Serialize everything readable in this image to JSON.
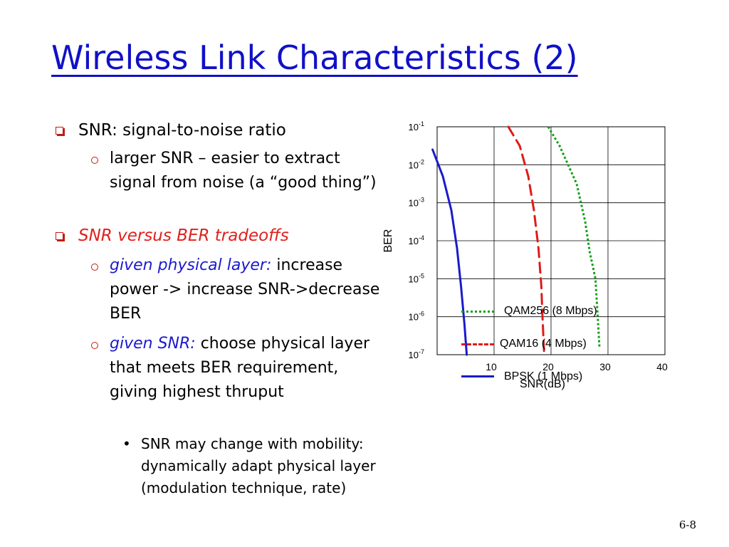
{
  "slide": {
    "title": "Wireless Link Characteristics (2)",
    "page_number": "6-8"
  },
  "bullets": [
    {
      "level": 1,
      "marker": "checkbox-icon",
      "parts": [
        {
          "text": "SNR: signal-to-noise ratio",
          "style": "normal"
        }
      ]
    },
    {
      "level": 2,
      "marker": "circle-icon",
      "parts": [
        {
          "text": "larger SNR – easier to extract signal from noise (a “good thing”)",
          "style": "normal"
        }
      ]
    },
    {
      "level": 1,
      "marker": "checkbox-icon",
      "parts": [
        {
          "text": "SNR versus BER tradeoffs",
          "style": "red-italic"
        }
      ]
    },
    {
      "level": 2,
      "marker": "circle-icon",
      "parts": [
        {
          "text": "given physical layer:",
          "style": "blue-italic"
        },
        {
          "text": " increase power -> increase SNR->decrease BER",
          "style": "normal"
        }
      ]
    },
    {
      "level": 2,
      "marker": "circle-icon",
      "parts": [
        {
          "text": "given SNR:",
          "style": "blue-italic"
        },
        {
          "text": " choose physical layer that meets BER requirement, giving highest thruput",
          "style": "normal"
        }
      ]
    },
    {
      "level": 3,
      "marker": "dot-icon",
      "parts": [
        {
          "text": "SNR may change with mobility: dynamically adapt physical layer (modulation technique, rate)",
          "style": "normal"
        }
      ]
    }
  ],
  "chart_data": {
    "type": "line",
    "title": "",
    "xlabel": "SNR(dB)",
    "ylabel": "BER",
    "xlim": [
      0,
      40
    ],
    "ylim_log10": [
      -7,
      -1
    ],
    "y_scale": "log",
    "x_ticks": [
      "10",
      "20",
      "30",
      "40"
    ],
    "y_ticks": [
      {
        "base": "10",
        "exp": "-1"
      },
      {
        "base": "10",
        "exp": "-2"
      },
      {
        "base": "10",
        "exp": "-3"
      },
      {
        "base": "10",
        "exp": "-4"
      },
      {
        "base": "10",
        "exp": "-5"
      },
      {
        "base": "10",
        "exp": "-6"
      },
      {
        "base": "10",
        "exp": "-7"
      }
    ],
    "grid": true,
    "legend_position": "bottom",
    "series": [
      {
        "name": "QAM256 (8 Mbps)",
        "color": "#10a018",
        "dash": "dotted",
        "points": [
          [
            19.5,
            -1.0
          ],
          [
            21.5,
            -1.5
          ],
          [
            24.5,
            -2.5
          ],
          [
            26.0,
            -3.5
          ],
          [
            26.8,
            -4.3
          ],
          [
            27.8,
            -5.0
          ],
          [
            28.2,
            -6.0
          ],
          [
            28.5,
            -6.8
          ]
        ]
      },
      {
        "name": "QAM16 (4 Mbps)",
        "color": "#e01a1a",
        "dash": "dashed",
        "points": [
          [
            12.5,
            -1.0
          ],
          [
            14.5,
            -1.5
          ],
          [
            16.0,
            -2.3
          ],
          [
            17.0,
            -3.2
          ],
          [
            17.8,
            -4.2
          ],
          [
            18.3,
            -5.2
          ],
          [
            18.5,
            -6.0
          ],
          [
            18.8,
            -7.0
          ]
        ]
      },
      {
        "name": "BPSK (1 Mbps)",
        "color": "#1a1acc",
        "dash": "solid",
        "points": [
          [
            -0.8,
            -1.6
          ],
          [
            1.0,
            -2.3
          ],
          [
            2.5,
            -3.2
          ],
          [
            3.5,
            -4.2
          ],
          [
            4.2,
            -5.2
          ],
          [
            4.8,
            -6.2
          ],
          [
            5.2,
            -7.0
          ]
        ]
      }
    ]
  }
}
